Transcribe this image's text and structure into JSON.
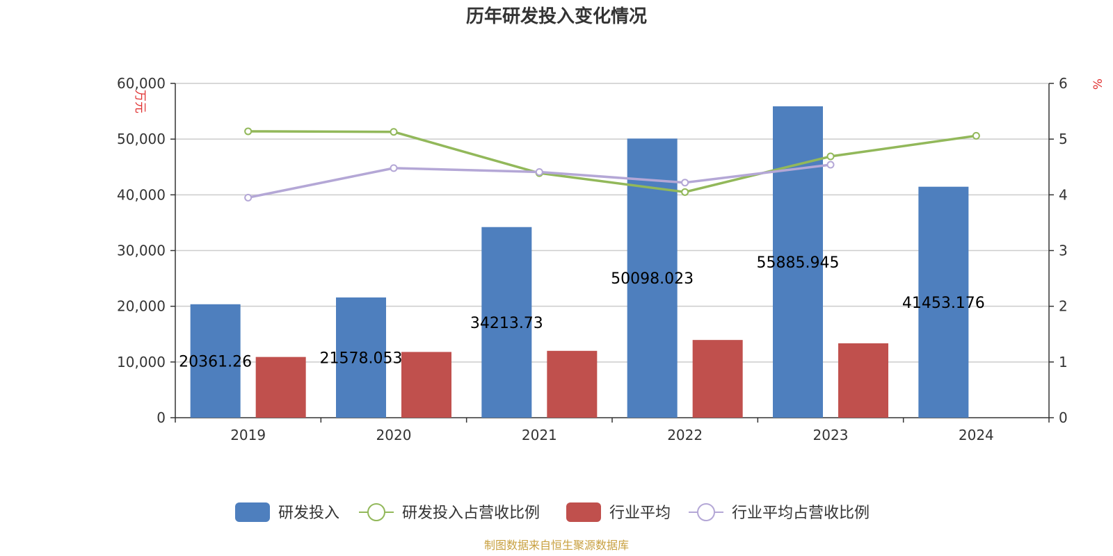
{
  "chart_data": {
    "type": "bar",
    "title": "历年研发投入变化情况",
    "categories": [
      "2019",
      "2020",
      "2021",
      "2022",
      "2023",
      "2024"
    ],
    "y_left": {
      "unit": "万元",
      "min": 0,
      "max": 60000,
      "ticks": [
        "0",
        "10,000",
        "20,000",
        "30,000",
        "40,000",
        "50,000",
        "60,000"
      ]
    },
    "y_right": {
      "unit": "%",
      "min": 0,
      "max": 6,
      "ticks": [
        "0",
        "1",
        "2",
        "3",
        "4",
        "5",
        "6"
      ]
    },
    "grid": true,
    "legend_position": "bottom",
    "series": [
      {
        "name": "研发投入",
        "kind": "bar",
        "axis": "left",
        "color": "#4e7fbe",
        "values": [
          20361.26,
          21578.053,
          34213.73,
          50098.023,
          55885.945,
          41453.176
        ],
        "labels": [
          "20361.26",
          "21578.053",
          "34213.73",
          "50098.023",
          "55885.945",
          "41453.176"
        ]
      },
      {
        "name": "研发投入占营收比例",
        "kind": "line",
        "axis": "right",
        "color": "#92b85a",
        "values": [
          5.14,
          5.13,
          4.39,
          4.05,
          4.69,
          5.06
        ]
      },
      {
        "name": "行业平均",
        "kind": "bar",
        "axis": "left",
        "color": "#c0504d",
        "values": [
          10900,
          11800,
          12000,
          13950,
          13350,
          null
        ]
      },
      {
        "name": "行业平均占营收比例",
        "kind": "line",
        "axis": "right",
        "color": "#b4a7d6",
        "values": [
          3.95,
          4.48,
          4.41,
          4.22,
          4.54,
          null
        ]
      }
    ]
  },
  "source": "制图数据来自恒生聚源数据库"
}
